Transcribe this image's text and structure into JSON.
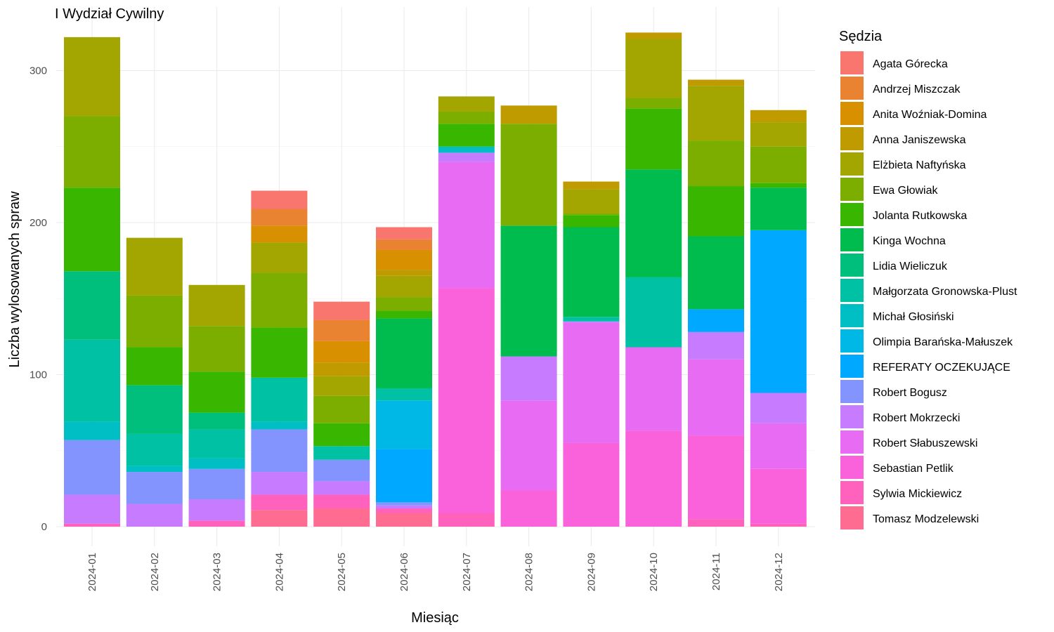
{
  "chart_data": {
    "type": "bar",
    "stacked": true,
    "title": "I Wydział Cywilny",
    "xlabel": "Miesiąc",
    "ylabel": "Liczba wylosowanych spraw",
    "ylim": [
      -12,
      325
    ],
    "y_ticks": [
      0,
      100,
      200,
      300
    ],
    "legend_title": "Sędzia",
    "legend_position": "right",
    "grid": true,
    "categories": [
      "2024-01",
      "2024-02",
      "2024-03",
      "2024-04",
      "2024-05",
      "2024-06",
      "2024-07",
      "2024-08",
      "2024-09",
      "2024-10",
      "2024-11",
      "2024-12"
    ],
    "series": [
      {
        "name": "Agata Górecka",
        "color": "#F8766D",
        "values": [
          0,
          0,
          0,
          12,
          12,
          8,
          0,
          0,
          0,
          0,
          0,
          0
        ]
      },
      {
        "name": "Andrzej Miszczak",
        "color": "#EA8331",
        "values": [
          0,
          0,
          0,
          11,
          14,
          7,
          0,
          0,
          0,
          0,
          0,
          0
        ]
      },
      {
        "name": "Anita Woźniak-Domina",
        "color": "#D89000",
        "values": [
          0,
          0,
          0,
          11,
          14,
          13,
          0,
          0,
          0,
          0,
          0,
          0
        ]
      },
      {
        "name": "Anna Janiszewska",
        "color": "#C09B00",
        "values": [
          0,
          0,
          0,
          0,
          9,
          4,
          0,
          12,
          5,
          4,
          4,
          8
        ]
      },
      {
        "name": "Elżbieta Naftyńska",
        "color": "#A3A500",
        "values": [
          52,
          38,
          27,
          20,
          13,
          14,
          10,
          0,
          16,
          39,
          36,
          16
        ]
      },
      {
        "name": "Ewa Głowiak",
        "color": "#7CAE00",
        "values": [
          47,
          34,
          30,
          36,
          18,
          9,
          8,
          67,
          1,
          7,
          30,
          24
        ]
      },
      {
        "name": "Jolanta Rutkowska",
        "color": "#39B600",
        "values": [
          55,
          25,
          27,
          33,
          15,
          5,
          15,
          0,
          8,
          40,
          33,
          3
        ]
      },
      {
        "name": "Kinga Wochna",
        "color": "#00BB4E",
        "values": [
          0,
          0,
          0,
          0,
          0,
          46,
          0,
          86,
          59,
          71,
          48,
          28
        ]
      },
      {
        "name": "Lidia Wieliczuk",
        "color": "#00BF7D",
        "values": [
          45,
          32,
          11,
          0,
          0,
          0,
          0,
          0,
          0,
          0,
          0,
          0
        ]
      },
      {
        "name": "Małgorzata Gronowska-Plust",
        "color": "#00C1A3",
        "values": [
          54,
          21,
          19,
          29,
          9,
          8,
          0,
          0,
          3,
          46,
          0,
          0
        ]
      },
      {
        "name": "Michał Głosiński",
        "color": "#00BFC4",
        "values": [
          12,
          4,
          7,
          5,
          0,
          0,
          4,
          0,
          0,
          0,
          0,
          0
        ]
      },
      {
        "name": "Olimpia Barańska-Małuszek",
        "color": "#00B8E5",
        "values": [
          0,
          0,
          0,
          0,
          0,
          32,
          0,
          0,
          0,
          0,
          0,
          0
        ]
      },
      {
        "name": "REFERATY OCZEKUJĄCE",
        "color": "#00A9FF",
        "values": [
          0,
          0,
          0,
          0,
          0,
          35,
          0,
          0,
          0,
          0,
          15,
          107
        ]
      },
      {
        "name": "Robert Bogusz",
        "color": "#8494FF",
        "values": [
          36,
          21,
          20,
          28,
          14,
          2,
          0,
          0,
          0,
          0,
          0,
          0
        ]
      },
      {
        "name": "Robert Mokrzecki",
        "color": "#C77CFF",
        "values": [
          19,
          15,
          14,
          15,
          9,
          2,
          6,
          29,
          1,
          0,
          18,
          20
        ]
      },
      {
        "name": "Robert Słabuszewski",
        "color": "#E76BF3",
        "values": [
          0,
          0,
          0,
          0,
          0,
          0,
          83,
          59,
          79,
          55,
          50,
          30
        ]
      },
      {
        "name": "Sebastian Petlik",
        "color": "#FA62DB",
        "values": [
          0,
          0,
          0,
          0,
          0,
          0,
          148,
          24,
          55,
          63,
          55,
          36
        ]
      },
      {
        "name": "Sylwia Mickiewicz",
        "color": "#FF62BC",
        "values": [
          2,
          0,
          4,
          10,
          9,
          3,
          9,
          0,
          0,
          0,
          5,
          2
        ]
      },
      {
        "name": "Tomasz Modzelewski",
        "color": "#FF6C91",
        "values": [
          0,
          0,
          0,
          11,
          12,
          9,
          0,
          0,
          0,
          0,
          0,
          0
        ]
      }
    ]
  }
}
